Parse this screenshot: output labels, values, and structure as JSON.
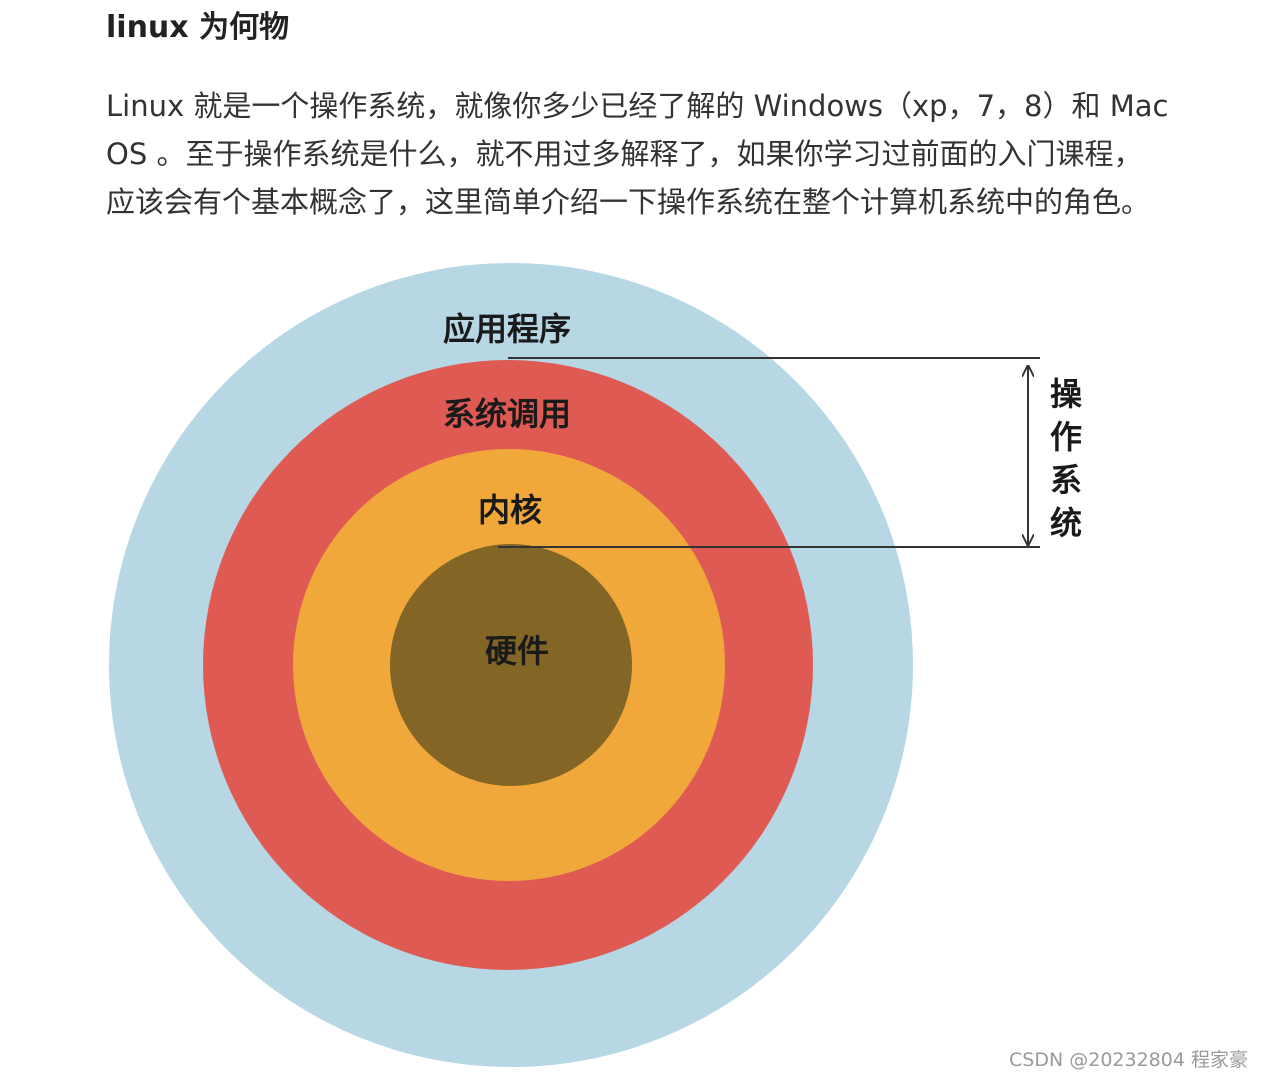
{
  "article": {
    "heading": "linux 为何物",
    "paragraph_lines": [
      "Linux 就是一个操作系统，就像你多少已经了解的 Windows（xp，7，8）和 Mac",
      "OS 。至于操作系统是什么，就不用过多解释了，如果你学习过前面的入门课程，",
      "应该会有个基本概念了，这里简单介绍一下操作系统在整个计算机系统中的角色。"
    ]
  },
  "diagram": {
    "rings": [
      {
        "label": "应用程序",
        "color": "#b6d7e3"
      },
      {
        "label": "系统调用",
        "color": "#e05a54"
      },
      {
        "label": "内核",
        "color": "#f0a83b"
      },
      {
        "label": "硬件",
        "color": "#836526"
      }
    ],
    "os_bracket": {
      "label_chars": [
        "操",
        "作",
        "系",
        "统"
      ],
      "line_color": "#333333"
    }
  },
  "watermark": "CSDN @20232804 程家豪"
}
